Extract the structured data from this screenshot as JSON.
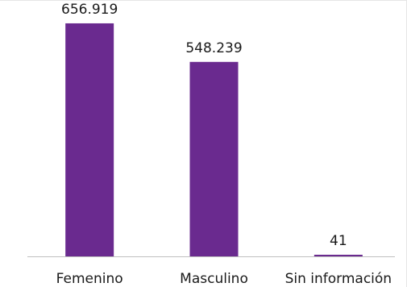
{
  "chart_data": {
    "type": "bar",
    "categories": [
      "Femenino",
      "Masculino",
      "Sin información"
    ],
    "values": [
      656919,
      548239,
      41
    ],
    "value_labels": [
      "656.919",
      "548.239",
      "41"
    ],
    "title": "",
    "xlabel": "",
    "ylabel": "",
    "ylim": [
      0,
      700000
    ],
    "grid": false,
    "legend": "none",
    "bar_color": "#6a2a8f"
  }
}
